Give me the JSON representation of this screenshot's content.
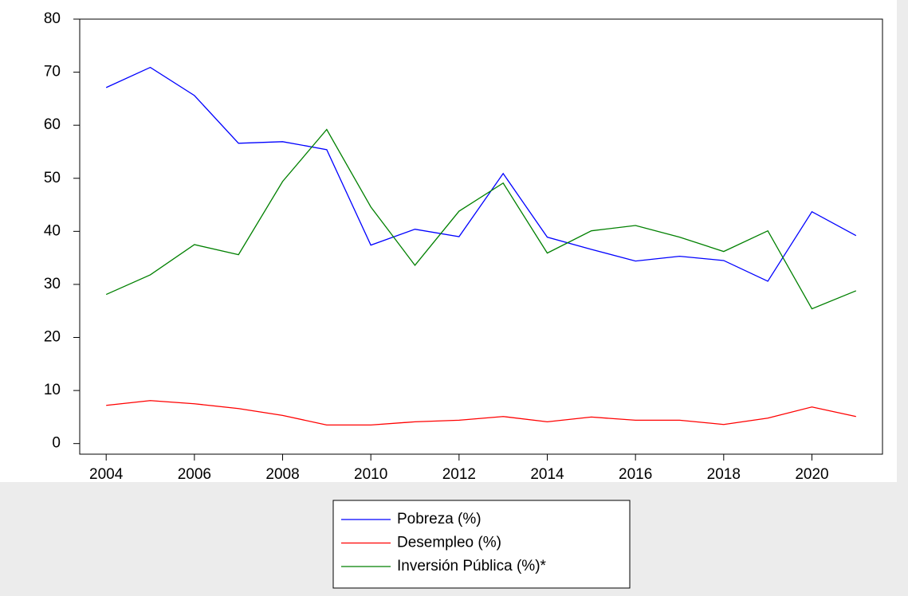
{
  "chart_data": {
    "type": "line",
    "x": [
      2004,
      2005,
      2006,
      2007,
      2008,
      2009,
      2010,
      2011,
      2012,
      2013,
      2014,
      2015,
      2016,
      2017,
      2018,
      2019,
      2020,
      2021
    ],
    "series": [
      {
        "name": "Pobreza (%)",
        "color": "#0000ff",
        "values": [
          67.1,
          70.9,
          65.6,
          56.6,
          56.9,
          55.4,
          37.4,
          40.4,
          39.0,
          50.9,
          38.9,
          36.6,
          34.4,
          35.3,
          34.5,
          30.6,
          43.7,
          39.2
        ]
      },
      {
        "name": "Desempleo (%)",
        "color": "#ff0000",
        "values": [
          7.2,
          8.1,
          7.5,
          6.6,
          5.3,
          3.5,
          3.5,
          4.1,
          4.4,
          5.1,
          4.1,
          5.0,
          4.4,
          4.4,
          3.6,
          4.8,
          6.9,
          5.1
        ]
      },
      {
        "name": "Inversión Pública (%)*",
        "color": "#008000",
        "values": [
          28.1,
          31.8,
          37.5,
          35.6,
          49.4,
          59.2,
          44.6,
          33.6,
          43.8,
          49.1,
          35.9,
          40.1,
          41.1,
          38.9,
          36.2,
          40.1,
          25.4,
          28.8
        ]
      }
    ],
    "xlim": [
      2003.4,
      2021.6
    ],
    "xticks": [
      2004,
      2006,
      2008,
      2010,
      2012,
      2014,
      2016,
      2018,
      2020
    ],
    "ylim": [
      -2,
      80
    ],
    "yticks": [
      0,
      10,
      20,
      30,
      40,
      50,
      60,
      70,
      80
    ],
    "legend": "bottom"
  }
}
